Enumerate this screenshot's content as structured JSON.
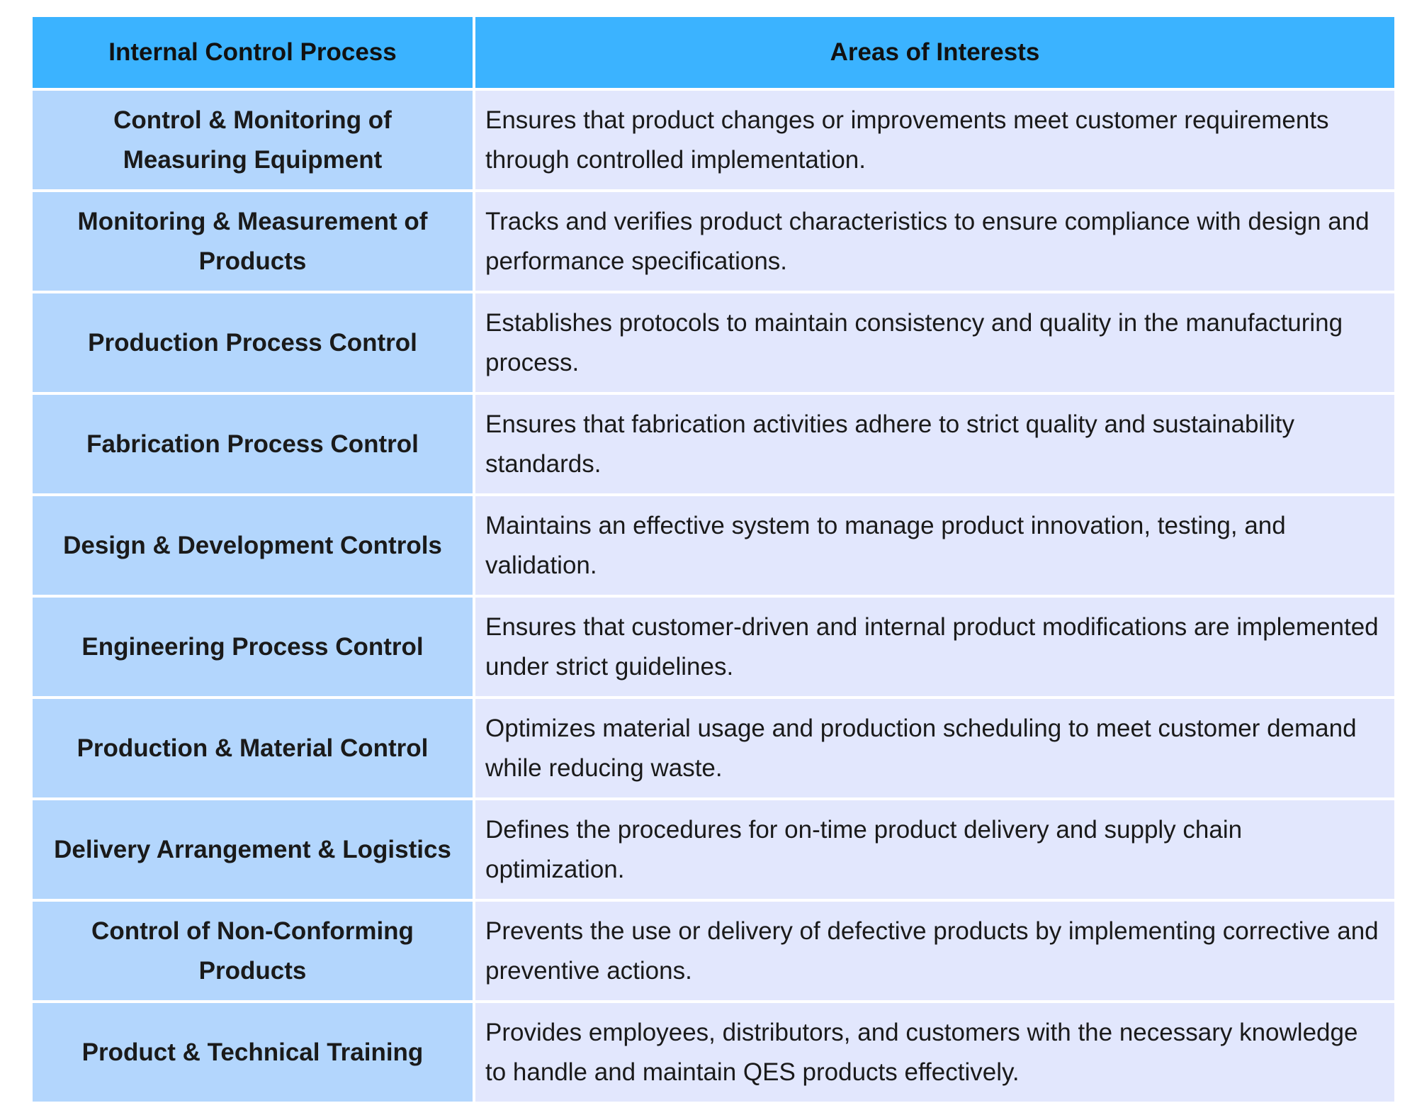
{
  "table": {
    "headers": [
      "Internal Control Process",
      "Areas of Interests"
    ],
    "rows": [
      {
        "process": "Control & Monitoring of Measuring Equipment",
        "area": "Ensures that product changes or improvements meet customer requirements through controlled implementation."
      },
      {
        "process": "Monitoring & Measurement of Products",
        "area": "Tracks and verifies product characteristics to ensure compliance with design and performance specifications."
      },
      {
        "process": "Production Process Control",
        "area": "Establishes protocols to maintain consistency and quality in the manufacturing process."
      },
      {
        "process": "Fabrication Process Control",
        "area": "Ensures that fabrication activities adhere to strict quality and sustainability standards."
      },
      {
        "process": "Design & Development Controls",
        "area": "Maintains an effective system to manage product innovation, testing, and validation."
      },
      {
        "process": "Engineering Process Control",
        "area": "Ensures that customer-driven and internal product modifications are implemented under strict guidelines."
      },
      {
        "process": "Production & Material Control",
        "area": "Optimizes material usage and production scheduling to meet customer demand while reducing waste."
      },
      {
        "process": "Delivery Arrangement & Logistics",
        "area": "Defines the procedures for on-time product delivery and supply chain optimization."
      },
      {
        "process": "Control of Non-Conforming Products",
        "area": "Prevents the use or delivery of defective products by implementing corrective and preventive actions."
      },
      {
        "process": "Product & Technical Training",
        "area": "Provides employees, distributors, and customers with the necessary knowledge to handle and maintain QES products effectively."
      }
    ]
  },
  "colors": {
    "header_bg": "#3bb3ff",
    "process_bg": "#b3d6fd",
    "area_bg": "#e2e7fd"
  }
}
